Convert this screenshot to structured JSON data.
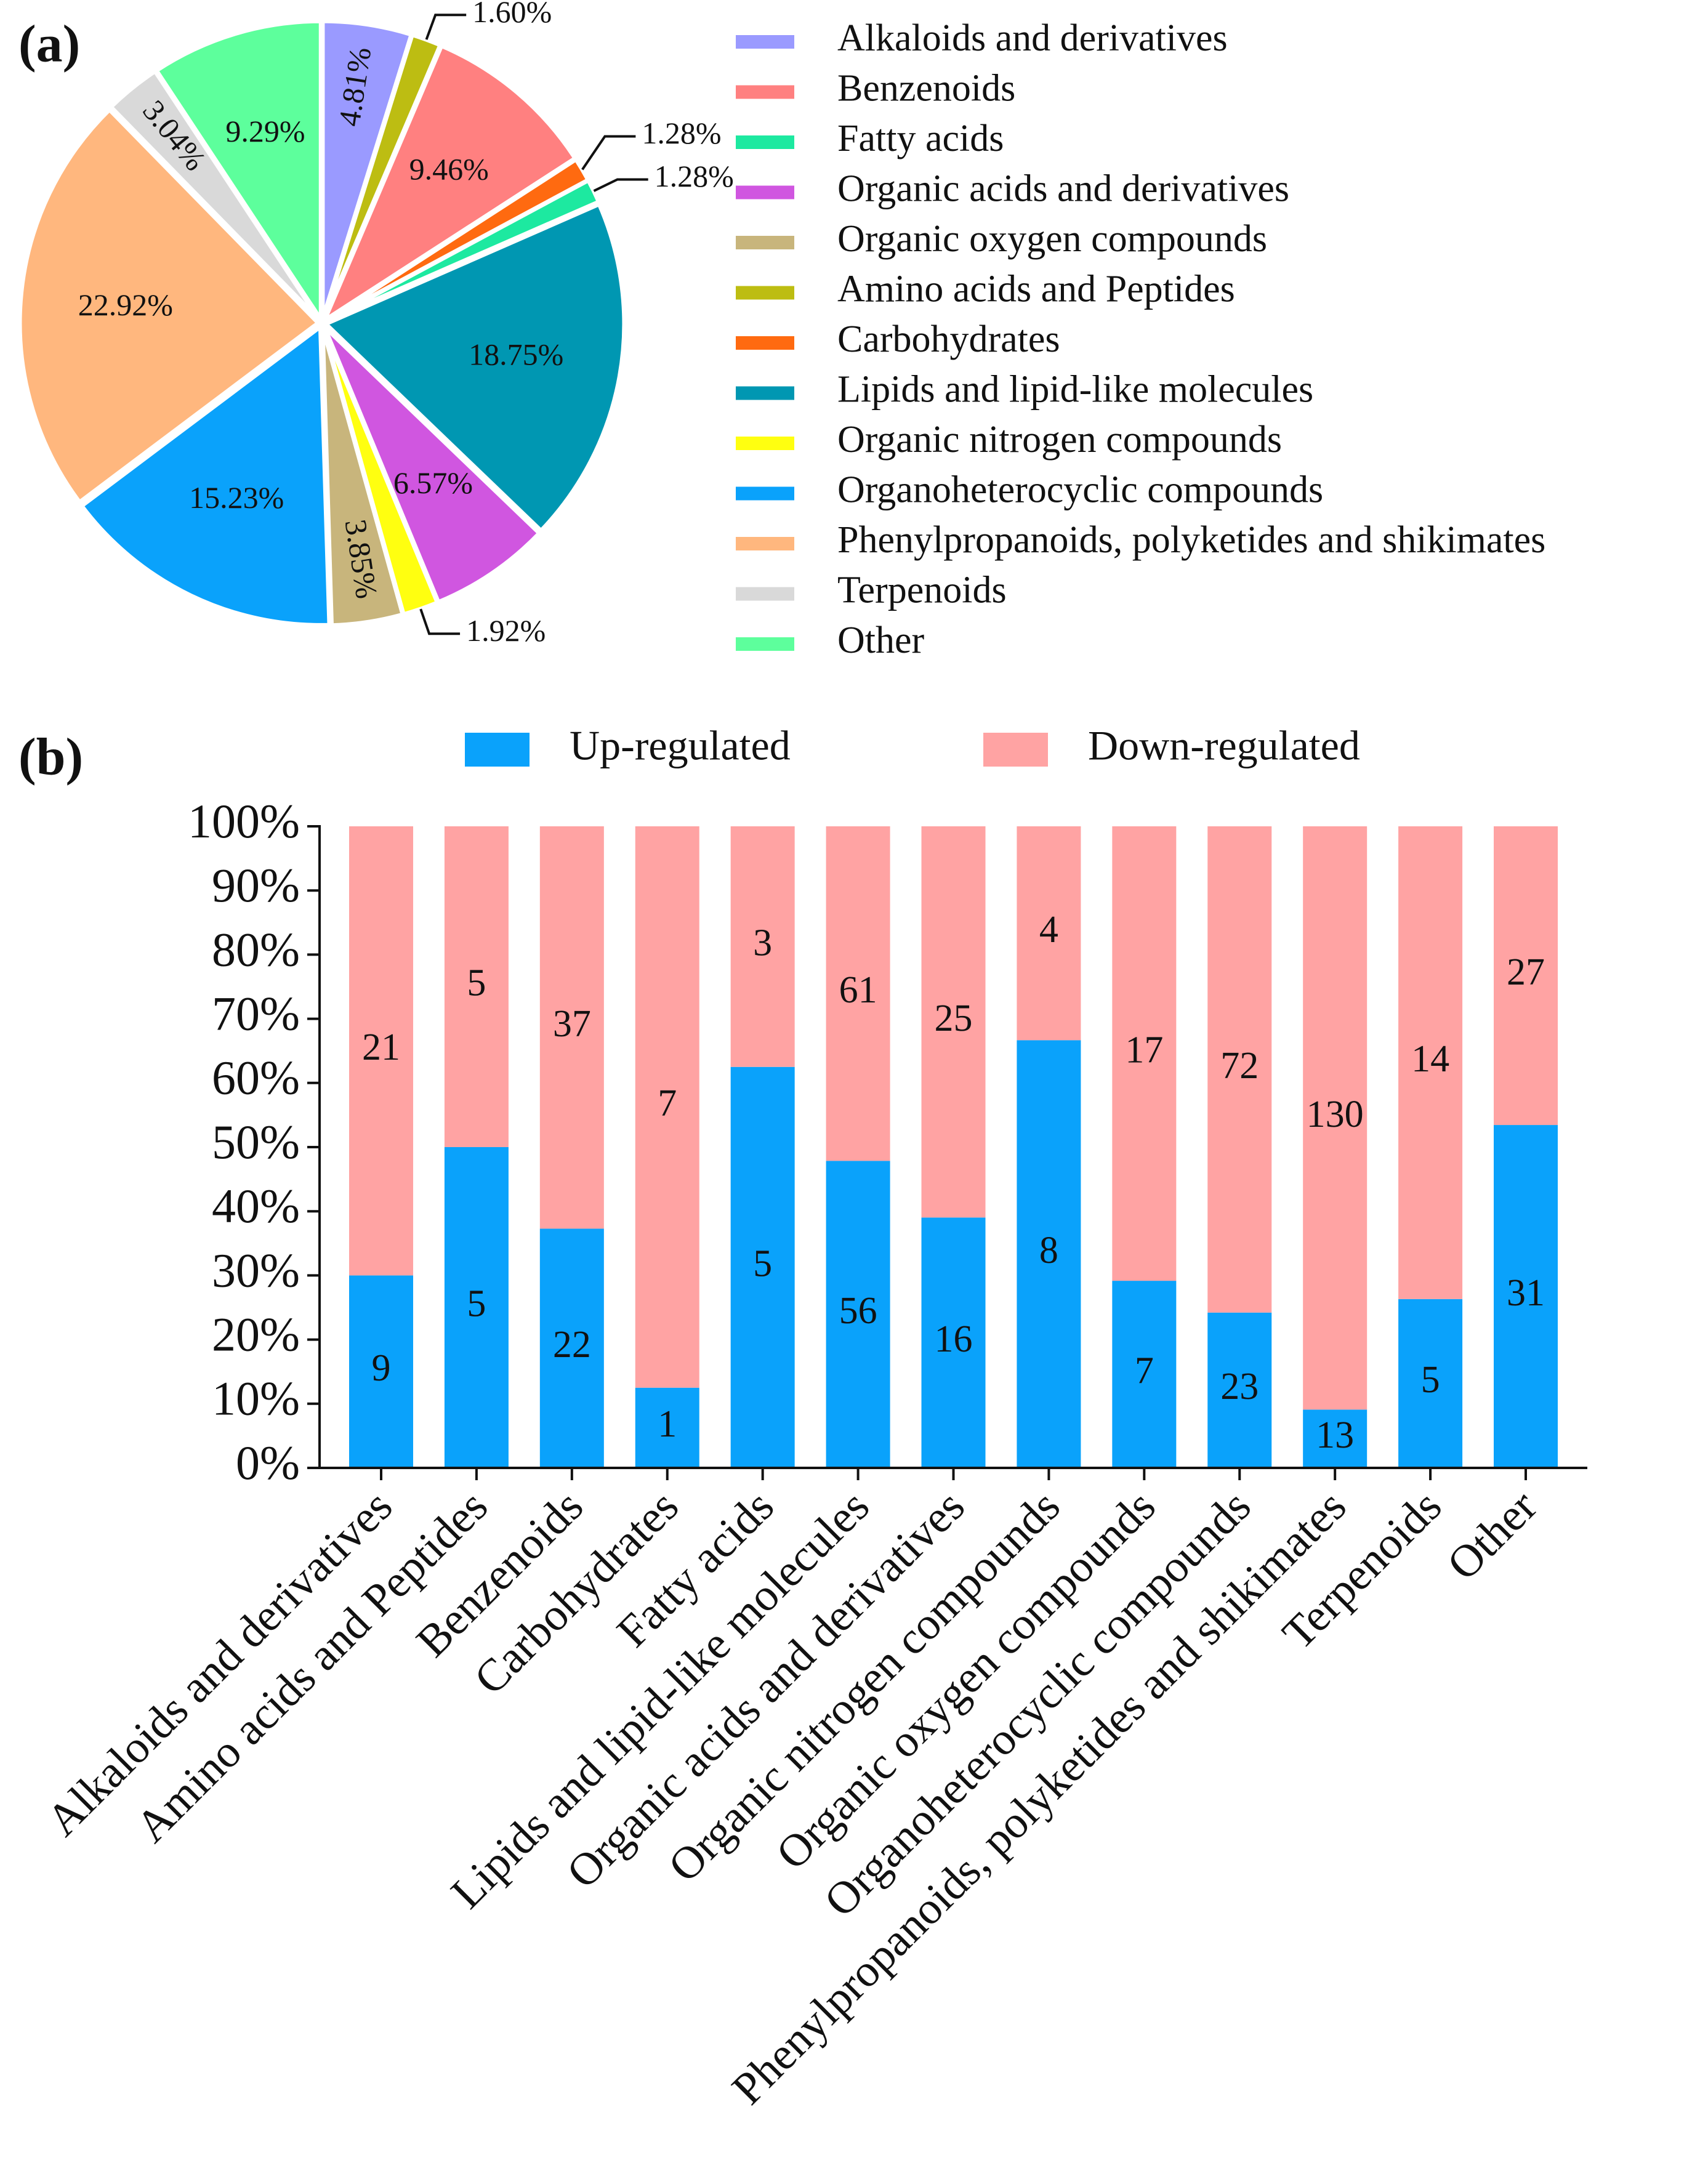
{
  "chart_data": [
    {
      "type": "pie",
      "panel_label": "(a)",
      "values": [
        4.81,
        1.6,
        9.46,
        1.28,
        1.28,
        18.75,
        6.57,
        1.92,
        3.85,
        15.23,
        22.92,
        3.04,
        9.29
      ],
      "value_labels": [
        "4.81%",
        "1.60%",
        "9.46%",
        "1.28%",
        "1.28%",
        "18.75%",
        "6.57%",
        "1.92%",
        "3.85%",
        "15.23%",
        "22.92%",
        "3.04%",
        "9.29%"
      ],
      "colors": [
        "#9a9aff",
        "#bdbd12",
        "#ff8080",
        "#ff6a10",
        "#1de9a0",
        "#0097b2",
        "#d056e0",
        "#ffff10",
        "#c8b57c",
        "#0aa2fb",
        "#ffb77e",
        "#d9d9d9",
        "#5dff9c"
      ],
      "legend": {
        "labels": [
          "Alkaloids and derivatives",
          "Benzenoids",
          "Fatty acids",
          "Organic acids and derivatives",
          "Organic oxygen compounds",
          "Amino acids and Peptides",
          "Carbohydrates",
          "Lipids and lipid-like molecules",
          "Organic nitrogen compounds",
          "Organoheterocyclic compounds",
          "Phenylpropanoids, polyketides and shikimates",
          "Terpenoids",
          "Other"
        ],
        "colors": [
          "#9a9aff",
          "#ff8080",
          "#1de9a0",
          "#d056e0",
          "#c8b57c",
          "#bdbd12",
          "#ff6a10",
          "#0097b2",
          "#ffff10",
          "#0aa2fb",
          "#ffb77e",
          "#d9d9d9",
          "#5dff9c"
        ]
      }
    },
    {
      "type": "stacked_percent_bar",
      "panel_label": "(b)",
      "categories": [
        "Alkaloids and derivatives",
        "Amino acids and Peptides",
        "Benzenoids",
        "Carbohydrates",
        "Fatty acids",
        "Lipids and lipid-like molecules",
        "Organic acids and derivatives",
        "Organic nitrogen compounds",
        "Organic oxygen compounds",
        "Organoheterocyclic compounds",
        "Phenylpropanoids, polyketides and shikimates",
        "Terpenoids",
        "Other"
      ],
      "series": [
        {
          "name": "Up-regulated",
          "color": "#0aa2fb",
          "values": [
            9,
            5,
            22,
            1,
            5,
            56,
            16,
            8,
            7,
            23,
            13,
            5,
            31
          ]
        },
        {
          "name": "Down-regulated",
          "color": "#ffa3a3",
          "values": [
            21,
            5,
            37,
            7,
            3,
            61,
            25,
            4,
            17,
            72,
            130,
            14,
            27
          ]
        }
      ],
      "ylim": [
        0,
        100
      ],
      "yticks": [
        {
          "value": 0,
          "label": "0%"
        },
        {
          "value": 10,
          "label": "10%"
        },
        {
          "value": 20,
          "label": "20%"
        },
        {
          "value": 30,
          "label": "30%"
        },
        {
          "value": 40,
          "label": "40%"
        },
        {
          "value": 50,
          "label": "50%"
        },
        {
          "value": 60,
          "label": "60%"
        },
        {
          "value": 70,
          "label": "70%"
        },
        {
          "value": 80,
          "label": "80%"
        },
        {
          "value": 90,
          "label": "90%"
        },
        {
          "value": 100,
          "label": "100%"
        }
      ]
    }
  ]
}
